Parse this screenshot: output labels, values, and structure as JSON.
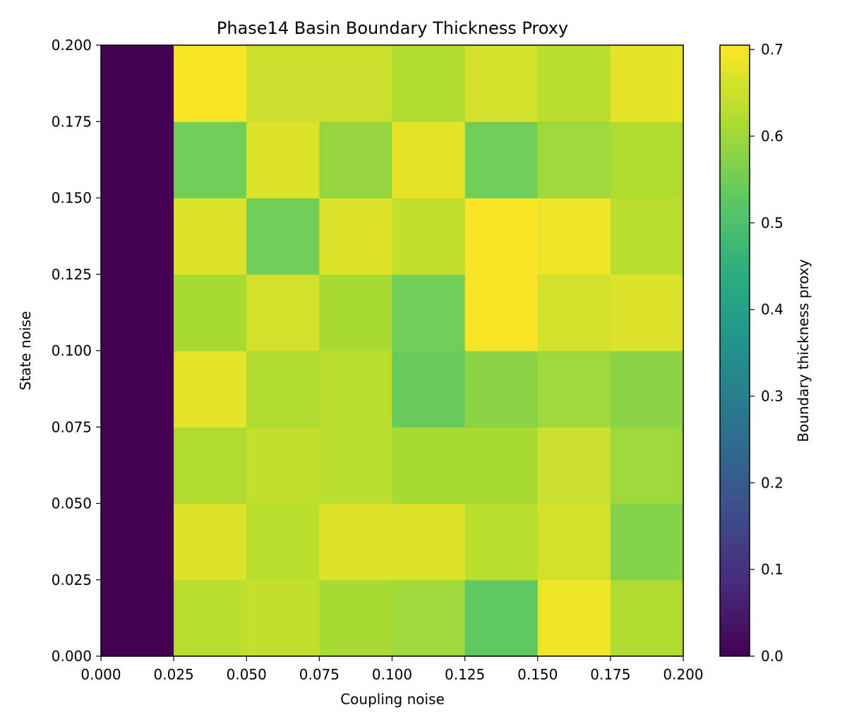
{
  "chart_data": {
    "type": "heatmap",
    "title": "Phase14 Basin Boundary Thickness Proxy",
    "xlabel": "Coupling noise",
    "ylabel": "State noise",
    "xlim": [
      0.0,
      0.2
    ],
    "ylim": [
      0.0,
      0.2
    ],
    "x_edges": [
      0.0,
      0.025,
      0.05,
      0.075,
      0.1,
      0.125,
      0.15,
      0.175,
      0.2
    ],
    "y_edges": [
      0.0,
      0.025,
      0.05,
      0.075,
      0.1,
      0.125,
      0.15,
      0.175,
      0.2
    ],
    "x_tick_labels": [
      "0.000",
      "0.025",
      "0.050",
      "0.075",
      "0.100",
      "0.125",
      "0.150",
      "0.175",
      "0.200"
    ],
    "y_tick_labels": [
      "0.000",
      "0.025",
      "0.050",
      "0.075",
      "0.100",
      "0.125",
      "0.150",
      "0.175",
      "0.200"
    ],
    "values": [
      [
        0.0,
        0.63,
        0.64,
        0.61,
        0.6,
        0.53,
        0.69,
        0.62
      ],
      [
        0.0,
        0.67,
        0.63,
        0.67,
        0.67,
        0.63,
        0.66,
        0.57
      ],
      [
        0.0,
        0.62,
        0.64,
        0.63,
        0.61,
        0.61,
        0.65,
        0.6
      ],
      [
        0.0,
        0.68,
        0.62,
        0.63,
        0.54,
        0.58,
        0.6,
        0.58
      ],
      [
        0.0,
        0.61,
        0.66,
        0.61,
        0.55,
        0.7,
        0.66,
        0.67
      ],
      [
        0.0,
        0.67,
        0.55,
        0.67,
        0.64,
        0.7,
        0.69,
        0.63
      ],
      [
        0.0,
        0.55,
        0.67,
        0.59,
        0.68,
        0.55,
        0.6,
        0.62
      ],
      [
        0.0,
        0.7,
        0.65,
        0.65,
        0.62,
        0.66,
        0.63,
        0.68
      ]
    ],
    "colormap": "viridis",
    "vmin": 0.0,
    "vmax": 0.705,
    "colorbar": {
      "label": "Boundary thickness proxy",
      "ticks": [
        0.0,
        0.1,
        0.2,
        0.3,
        0.4,
        0.5,
        0.6,
        0.7
      ],
      "tick_labels": [
        "0.0",
        "0.1",
        "0.2",
        "0.3",
        "0.4",
        "0.5",
        "0.6",
        "0.7"
      ],
      "placement": "right"
    },
    "grid": false
  }
}
